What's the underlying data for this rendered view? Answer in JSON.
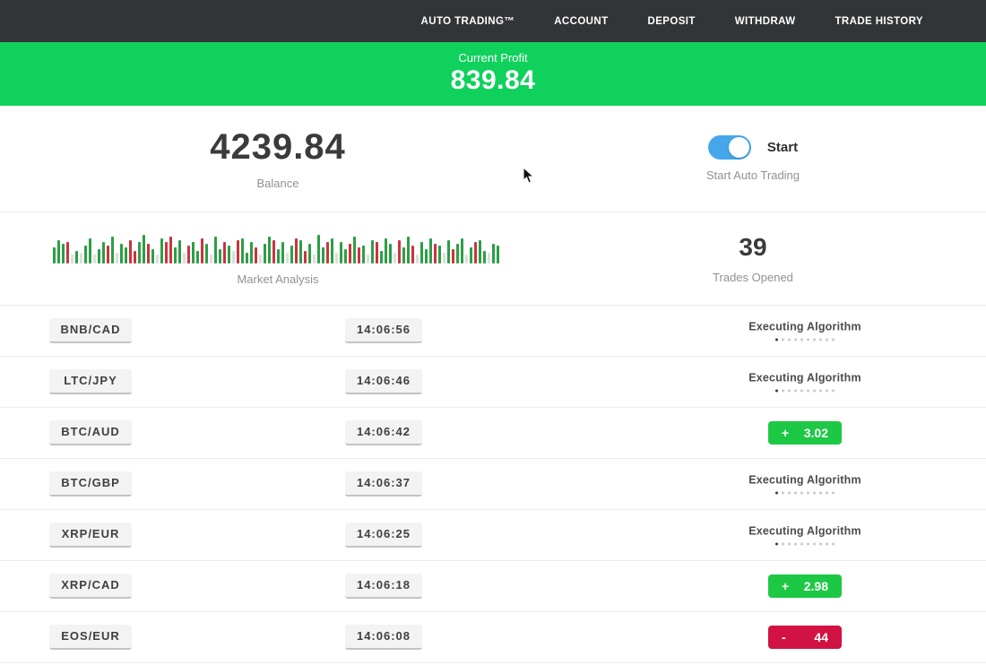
{
  "nav": {
    "items": [
      {
        "label": "AUTO TRADING™"
      },
      {
        "label": "ACCOUNT"
      },
      {
        "label": "DEPOSIT"
      },
      {
        "label": "WITHDRAW"
      },
      {
        "label": "TRADE HISTORY"
      }
    ]
  },
  "banner": {
    "label": "Current Profit",
    "value": "839.84"
  },
  "stats": {
    "balance": {
      "value": "4239.84",
      "label": "Balance"
    },
    "auto_trading": {
      "state": "on",
      "toggle_label": "Start",
      "caption": "Start Auto Trading"
    },
    "market": {
      "label": "Market Analysis"
    },
    "trades_opened": {
      "value": "39",
      "label": "Trades Opened"
    }
  },
  "chart_data": {
    "type": "bar",
    "title": "Market Analysis",
    "note": "decorative mini candlestick-style bar strip, ~100 bars, bottom-aligned",
    "palette": {
      "g": "#2d9e46",
      "r": "#c93441",
      "p": "#dce0da"
    },
    "bars": [
      "g18",
      "g26",
      "g22",
      "r24",
      "p10",
      "g14",
      "p12",
      "g20",
      "g28",
      "p10",
      "g16",
      "g24",
      "r20",
      "g30",
      "p12",
      "g22",
      "g18",
      "r26",
      "r14",
      "g24",
      "g32",
      "r22",
      "g16",
      "p10",
      "g28",
      "r24",
      "r30",
      "g18",
      "g26",
      "p12",
      "r20",
      "g24",
      "g14",
      "r28",
      "g22",
      "p10",
      "g30",
      "g16",
      "r24",
      "g20",
      "p14",
      "r26",
      "g28",
      "g12",
      "g24",
      "r18",
      "p10",
      "g22",
      "g30",
      "r26",
      "g16",
      "g24",
      "p12",
      "g20",
      "r28",
      "g26",
      "r14",
      "g22",
      "p10",
      "g32",
      "g18",
      "r24",
      "g28",
      "p12",
      "g24",
      "g16",
      "r22",
      "g30",
      "r18",
      "g20",
      "p10",
      "g26",
      "r24",
      "g14",
      "g28",
      "g22",
      "p12",
      "r26",
      "g18",
      "g30",
      "r20",
      "p10",
      "g24",
      "g16",
      "g28",
      "r22",
      "g20",
      "p12",
      "g26",
      "r16",
      "g22",
      "g28",
      "p10",
      "g18",
      "r24",
      "g26",
      "g14",
      "p12",
      "g22",
      "g20"
    ]
  },
  "trades_list": {
    "executing_label": "Executing Algorithm",
    "dots_total": 10,
    "dots_active": 1,
    "rows": [
      {
        "pair": "BNB/CAD",
        "time": "14:06:56",
        "status": "executing"
      },
      {
        "pair": "LTC/JPY",
        "time": "14:06:46",
        "status": "executing"
      },
      {
        "pair": "BTC/AUD",
        "time": "14:06:42",
        "status": "result",
        "sign": "+",
        "value": "3.02",
        "direction": "gain"
      },
      {
        "pair": "BTC/GBP",
        "time": "14:06:37",
        "status": "executing"
      },
      {
        "pair": "XRP/EUR",
        "time": "14:06:25",
        "status": "executing"
      },
      {
        "pair": "XRP/CAD",
        "time": "14:06:18",
        "status": "result",
        "sign": "+",
        "value": "2.98",
        "direction": "gain"
      },
      {
        "pair": "EOS/EUR",
        "time": "14:06:08",
        "status": "result",
        "sign": "-",
        "value": "44",
        "direction": "loss"
      }
    ]
  },
  "colors": {
    "navbar_bg": "#333436",
    "banner_green": "#0fd15c",
    "gain_green": "#1dc845",
    "loss_red": "#d11243",
    "toggle_blue": "#45a7ea"
  }
}
